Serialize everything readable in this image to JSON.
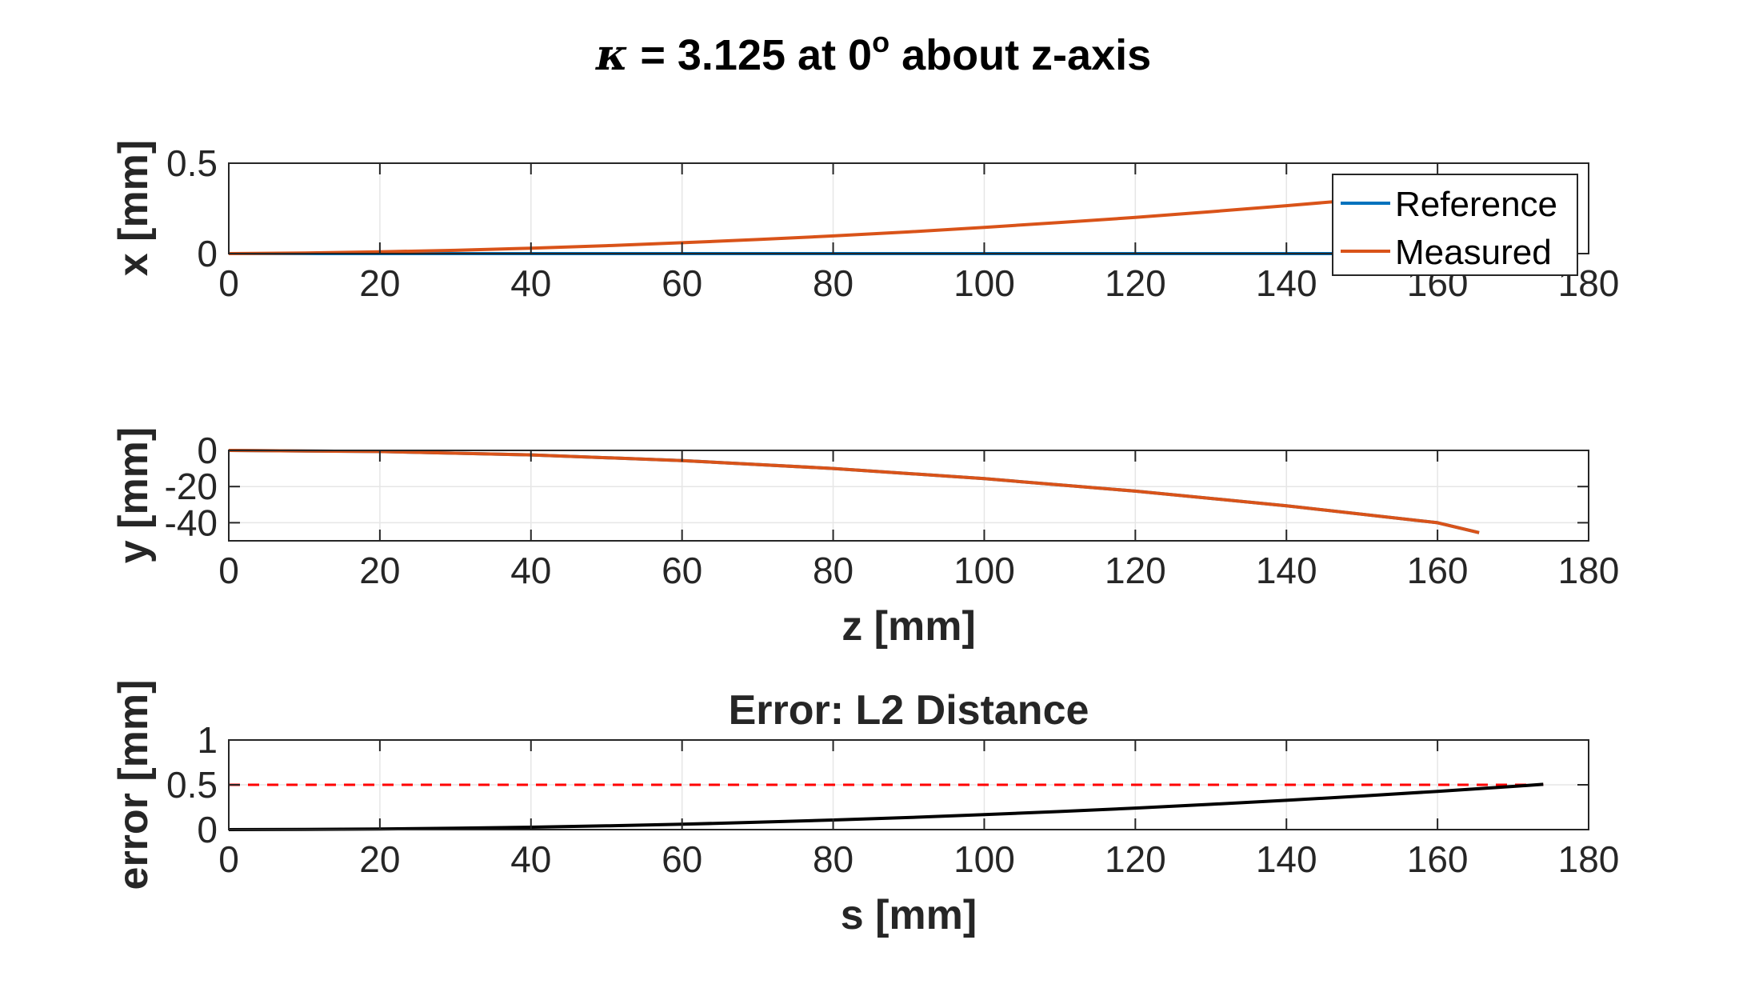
{
  "figure": {
    "title_symbol": "κ",
    "title_main": " = 3.125 at 0",
    "title_sup": "o",
    "title_rest": " about z-axis"
  },
  "chart_data": [
    {
      "type": "line",
      "title": "",
      "xlabel": "",
      "ylabel": "x [mm]",
      "xlim": [
        0,
        180
      ],
      "ylim": [
        0,
        0.5
      ],
      "xticks": [
        "0",
        "20",
        "40",
        "60",
        "80",
        "100",
        "120",
        "140",
        "160",
        "180"
      ],
      "yticks": [
        "0",
        "0.5"
      ],
      "grid": true,
      "legend": {
        "placement": "top-right",
        "entries": [
          "Reference",
          "Measured"
        ]
      },
      "series": [
        {
          "name": "Reference",
          "color": "#0072BD",
          "x": [
            0,
            20,
            40,
            60,
            80,
            100,
            120,
            140,
            160,
            165.5
          ],
          "y": [
            0,
            0,
            0,
            0,
            0,
            0,
            0,
            0,
            0,
            0
          ]
        },
        {
          "name": "Measured",
          "color": "#D95319",
          "x": [
            0,
            10,
            20,
            30,
            40,
            50,
            60,
            70,
            80,
            90,
            100,
            110,
            120,
            130,
            140,
            150,
            160,
            165.5
          ],
          "y": [
            0,
            0.003,
            0.01,
            0.018,
            0.03,
            0.044,
            0.06,
            0.078,
            0.098,
            0.12,
            0.145,
            0.172,
            0.2,
            0.232,
            0.265,
            0.3,
            0.338,
            0.36
          ]
        }
      ]
    },
    {
      "type": "line",
      "title": "",
      "xlabel": "z [mm]",
      "ylabel": "y [mm]",
      "xlim": [
        0,
        180
      ],
      "ylim": [
        -50,
        0
      ],
      "xticks": [
        "0",
        "20",
        "40",
        "60",
        "80",
        "100",
        "120",
        "140",
        "160",
        "180"
      ],
      "yticks": [
        "0",
        "-20",
        "-40"
      ],
      "ytick_values": [
        0,
        -20,
        -40
      ],
      "grid": true,
      "series": [
        {
          "name": "Reference",
          "color": "#0072BD",
          "x": [
            0,
            20,
            40,
            60,
            80,
            100,
            120,
            140,
            160,
            165.5
          ],
          "y": [
            0,
            -0.6,
            -2.5,
            -5.6,
            -10,
            -15.6,
            -22.5,
            -30.6,
            -40,
            -45.5
          ]
        },
        {
          "name": "Measured",
          "color": "#D95319",
          "x": [
            0,
            20,
            40,
            60,
            80,
            100,
            120,
            140,
            160,
            165.5
          ],
          "y": [
            0,
            -0.6,
            -2.5,
            -5.6,
            -10,
            -15.6,
            -22.5,
            -30.6,
            -40,
            -45.5
          ]
        }
      ]
    },
    {
      "type": "line",
      "title": "Error: L2 Distance",
      "xlabel": "s [mm]",
      "ylabel": "error [mm]",
      "xlim": [
        0,
        180
      ],
      "ylim": [
        0,
        1
      ],
      "xticks": [
        "0",
        "20",
        "40",
        "60",
        "80",
        "100",
        "120",
        "140",
        "160",
        "180"
      ],
      "yticks": [
        "0",
        "0.5",
        "1"
      ],
      "ytick_values": [
        0,
        0.5,
        1
      ],
      "grid": true,
      "threshold": {
        "y": 0.5,
        "color": "#FF0000",
        "style": "dashed",
        "x_range": [
          0,
          174
        ]
      },
      "series": [
        {
          "name": "",
          "color": "#000000",
          "x": [
            0,
            10,
            20,
            30,
            40,
            50,
            60,
            70,
            80,
            90,
            100,
            110,
            120,
            130,
            140,
            150,
            160,
            170,
            174
          ],
          "y": [
            0,
            0.002,
            0.007,
            0.015,
            0.027,
            0.042,
            0.06,
            0.082,
            0.107,
            0.135,
            0.167,
            0.202,
            0.24,
            0.282,
            0.327,
            0.375,
            0.427,
            0.482,
            0.505
          ]
        }
      ]
    }
  ]
}
